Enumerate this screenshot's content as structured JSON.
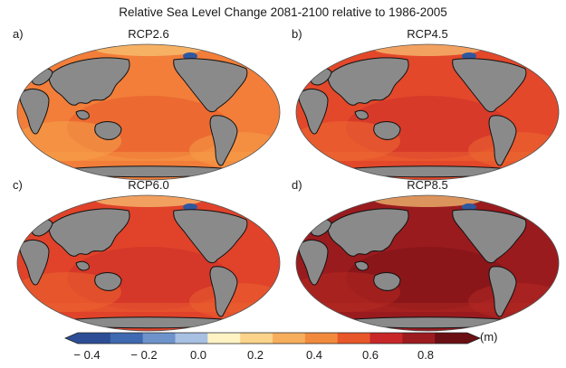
{
  "title": "Relative Sea Level Change 2081-2100 relative to 1986-2005",
  "panels": [
    {
      "label": "a)",
      "scenario": "RCP2.6",
      "ocean_base": "#F27E3A",
      "accent": "#E85A2A",
      "deep": "#F6A04A"
    },
    {
      "label": "b)",
      "scenario": "RCP4.5",
      "ocean_base": "#E3482A",
      "accent": "#D0302A",
      "deep": "#EE6A32"
    },
    {
      "label": "c)",
      "scenario": "RCP6.0",
      "ocean_base": "#E0432A",
      "accent": "#CC2E28",
      "deep": "#EC6430"
    },
    {
      "label": "d)",
      "scenario": "RCP8.5",
      "ocean_base": "#9A1B1E",
      "accent": "#7E1318",
      "deep": "#B42A22"
    }
  ],
  "land_color": "#8A8A8A",
  "colorbar": {
    "unit": "(m)",
    "ticks": [
      "− 0.4",
      "− 0.2",
      "0.0",
      "0.2",
      "0.4",
      "0.6",
      "0.8"
    ],
    "colors": [
      "#2D4E96",
      "#3F69B0",
      "#6E93CB",
      "#A8C0E2",
      "#FFF3C4",
      "#FBD38A",
      "#F7AE5C",
      "#F28A3E",
      "#E8572A",
      "#C9262A",
      "#9C1B1F",
      "#6A0F14"
    ]
  }
}
